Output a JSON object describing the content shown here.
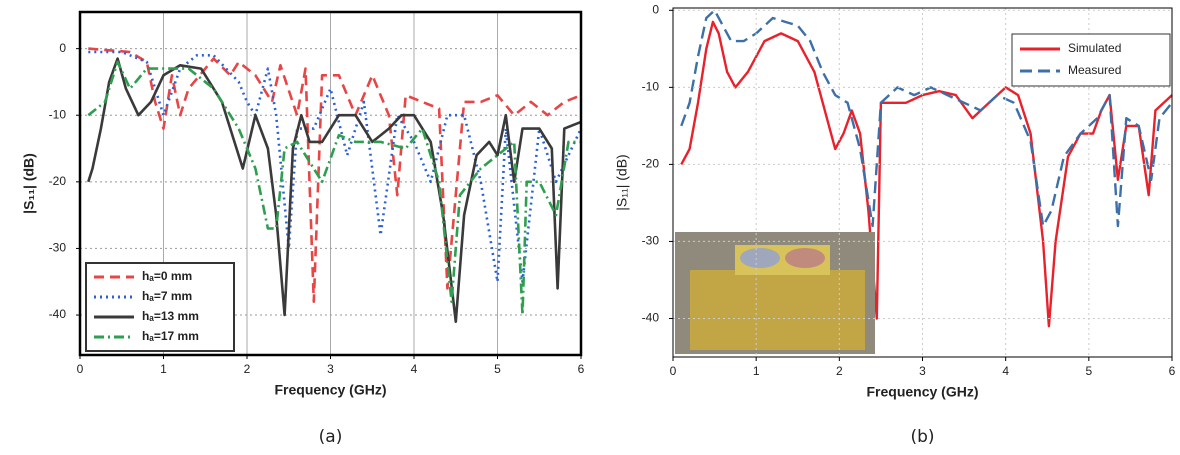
{
  "chart_data": [
    {
      "type": "line",
      "xlabel": "Frequency (GHz)",
      "ylabel": "|S₁₁| (dB)",
      "caption": "(a)",
      "xlim": [
        0,
        6
      ],
      "xticks": [
        0,
        1,
        2,
        3,
        4,
        5,
        6
      ],
      "ylim": [
        -46,
        5.5
      ],
      "yticks": [
        0,
        -10,
        -20,
        -30,
        -40
      ],
      "grid": true,
      "legend": "lower left",
      "series": [
        {
          "name": "hₐ=0 mm",
          "color": "#e84545",
          "dash": "10 6",
          "x": [
            0.1,
            0.6,
            0.8,
            0.9,
            1.0,
            1.1,
            1.2,
            1.3,
            1.5,
            1.6,
            1.8,
            1.9,
            2.1,
            2.3,
            2.4,
            2.6,
            2.7,
            2.8,
            2.9,
            3.1,
            3.3,
            3.5,
            3.7,
            3.8,
            3.9,
            4.1,
            4.3,
            4.4,
            4.6,
            4.8,
            5.0,
            5.2,
            5.4,
            5.6,
            5.8,
            6.0
          ],
          "values": [
            0,
            -0.5,
            -2,
            -8,
            -12,
            -4,
            -10,
            -6,
            -3,
            -1.5,
            -4,
            -2,
            -4,
            -8,
            -2.5,
            -10,
            -3,
            -38,
            -4,
            -4,
            -10,
            -4,
            -10,
            -22,
            -7,
            -8,
            -9,
            -36,
            -8,
            -8,
            -7,
            -10,
            -8,
            -10,
            -8,
            -7
          ]
        },
        {
          "name": "hₐ=7 mm",
          "color": "#2a62d6",
          "dash": "2 4",
          "x": [
            0.1,
            0.5,
            0.8,
            1.0,
            1.2,
            1.4,
            1.6,
            1.75,
            1.9,
            2.0,
            2.1,
            2.25,
            2.35,
            2.5,
            2.6,
            2.8,
            3.0,
            3.2,
            3.4,
            3.6,
            3.8,
            4.0,
            4.2,
            4.4,
            4.6,
            4.8,
            5.0,
            5.1,
            5.3,
            5.5,
            5.7,
            6.0
          ],
          "values": [
            -0.5,
            -0.5,
            -2,
            -10,
            -3,
            -1,
            -1,
            -3,
            -5,
            -8,
            -10,
            -3,
            -10,
            -30,
            -12,
            -12,
            -6,
            -16,
            -8,
            -28,
            -10,
            -14,
            -20,
            -10,
            -10,
            -20,
            -35,
            -12,
            -35,
            -12,
            -20,
            -12
          ]
        },
        {
          "name": "hₐ=13 mm",
          "color": "#3a3a3a",
          "dash": "",
          "x": [
            0.1,
            0.15,
            0.25,
            0.35,
            0.45,
            0.55,
            0.7,
            0.85,
            1.0,
            1.2,
            1.45,
            1.7,
            1.95,
            2.1,
            2.25,
            2.35,
            2.45,
            2.55,
            2.65,
            2.75,
            2.9,
            3.1,
            3.3,
            3.5,
            3.7,
            3.85,
            4.0,
            4.2,
            4.35,
            4.5,
            4.6,
            4.75,
            4.9,
            5.0,
            5.1,
            5.2,
            5.3,
            5.5,
            5.65,
            5.72,
            5.8,
            6.0
          ],
          "values": [
            -20,
            -18,
            -12,
            -5,
            -1.5,
            -6,
            -10,
            -8,
            -4,
            -2.5,
            -3,
            -8,
            -18,
            -10,
            -15,
            -25,
            -40,
            -15,
            -10,
            -14,
            -14,
            -10,
            -10,
            -14,
            -12,
            -10,
            -10,
            -14,
            -25,
            -41,
            -25,
            -16,
            -14,
            -16,
            -10,
            -20,
            -12,
            -12,
            -15,
            -36,
            -12,
            -11
          ]
        },
        {
          "name": "hₐ=17 mm",
          "color": "#2e9e4f",
          "dash": "10 4 2 4",
          "x": [
            0.1,
            0.3,
            0.45,
            0.6,
            0.8,
            1.0,
            1.3,
            1.6,
            1.9,
            2.1,
            2.25,
            2.35,
            2.45,
            2.6,
            2.75,
            2.9,
            3.1,
            3.3,
            3.6,
            3.9,
            4.1,
            4.3,
            4.45,
            4.55,
            4.8,
            5.0,
            5.2,
            5.3,
            5.35,
            5.5,
            5.7,
            5.85,
            6.0
          ],
          "values": [
            -10,
            -8,
            -2,
            -6,
            -3,
            -3,
            -3,
            -6,
            -12,
            -18,
            -27,
            -27,
            -15,
            -14,
            -17,
            -20,
            -13,
            -14,
            -14,
            -15,
            -12,
            -20,
            -38,
            -22,
            -18,
            -16,
            -14,
            -40,
            -20,
            -20,
            -25,
            -14,
            -14
          ]
        }
      ]
    },
    {
      "type": "line",
      "xlabel": "Frequency (GHz)",
      "ylabel": "|S₁₁| (dB)",
      "caption": "(b)",
      "xlim": [
        0,
        6
      ],
      "xticks": [
        0,
        1,
        2,
        3,
        4,
        5,
        6
      ],
      "ylim": [
        -45,
        0.3
      ],
      "yticks": [
        0,
        -10,
        -20,
        -30,
        -40
      ],
      "grid": true,
      "legend": "upper right",
      "series": [
        {
          "name": "Simulated",
          "color": "#e8212b",
          "dash": "",
          "x": [
            0.1,
            0.2,
            0.3,
            0.4,
            0.48,
            0.55,
            0.65,
            0.75,
            0.9,
            1.1,
            1.3,
            1.5,
            1.7,
            1.85,
            1.95,
            2.05,
            2.15,
            2.25,
            2.35,
            2.45,
            2.5,
            2.6,
            2.8,
            3.0,
            3.2,
            3.4,
            3.6,
            3.8,
            4.0,
            4.15,
            4.3,
            4.45,
            4.52,
            4.6,
            4.75,
            4.9,
            5.05,
            5.15,
            5.25,
            5.35,
            5.45,
            5.6,
            5.72,
            5.8,
            6.0
          ],
          "values": [
            -20,
            -18,
            -12,
            -5,
            -1.5,
            -3,
            -8,
            -10,
            -8,
            -4,
            -3,
            -4,
            -8,
            -14,
            -18,
            -16,
            -13,
            -16,
            -26,
            -40,
            -12,
            -12,
            -12,
            -11,
            -10.5,
            -11,
            -14,
            -12,
            -10,
            -11,
            -16,
            -30,
            -41,
            -30,
            -19,
            -16,
            -16,
            -13,
            -11,
            -22,
            -15,
            -15,
            -24,
            -13,
            -11
          ]
        },
        {
          "name": "Measured",
          "color": "#3d6fa8",
          "dash": "12 6",
          "x": [
            0.1,
            0.2,
            0.3,
            0.4,
            0.5,
            0.6,
            0.7,
            0.85,
            1.0,
            1.2,
            1.35,
            1.5,
            1.65,
            1.8,
            1.95,
            2.1,
            2.25,
            2.4,
            2.5,
            2.7,
            2.9,
            3.1,
            3.3,
            3.5,
            3.7,
            3.9,
            4.1,
            4.3,
            4.45,
            4.55,
            4.7,
            4.9,
            5.1,
            5.25,
            5.35,
            5.45,
            5.6,
            5.75,
            5.85,
            6.0
          ],
          "values": [
            -15,
            -12,
            -6,
            -1,
            0,
            -2,
            -4,
            -4,
            -3,
            -1,
            -1.5,
            -2,
            -4,
            -8,
            -11,
            -12,
            -18,
            -28,
            -12,
            -10,
            -11,
            -10,
            -11,
            -12,
            -13,
            -11,
            -12,
            -17,
            -28,
            -26,
            -19,
            -16,
            -14,
            -11,
            -28,
            -14,
            -15,
            -22,
            -14,
            -12
          ]
        }
      ]
    }
  ]
}
